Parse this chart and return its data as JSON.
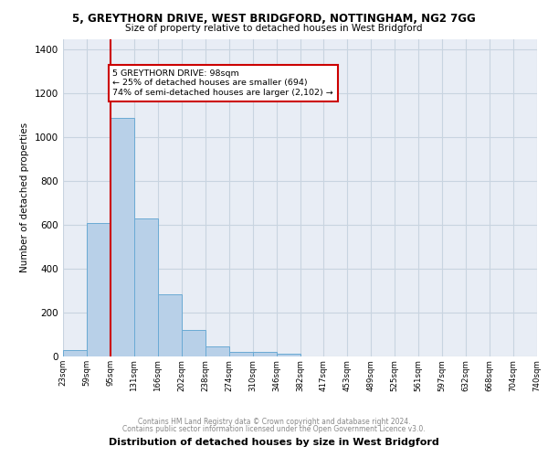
{
  "title": "5, GREYTHORN DRIVE, WEST BRIDGFORD, NOTTINGHAM, NG2 7GG",
  "subtitle": "Size of property relative to detached houses in West Bridgford",
  "xlabel": "Distribution of detached houses by size in West Bridgford",
  "ylabel": "Number of detached properties",
  "bin_labels": [
    "23sqm",
    "59sqm",
    "95sqm",
    "131sqm",
    "166sqm",
    "202sqm",
    "238sqm",
    "274sqm",
    "310sqm",
    "346sqm",
    "382sqm",
    "417sqm",
    "453sqm",
    "489sqm",
    "525sqm",
    "561sqm",
    "597sqm",
    "632sqm",
    "668sqm",
    "704sqm",
    "740sqm"
  ],
  "bar_values": [
    30,
    610,
    1090,
    630,
    285,
    120,
    45,
    20,
    20,
    12,
    0,
    0,
    0,
    0,
    0,
    0,
    0,
    0,
    0,
    0
  ],
  "bar_color": "#b8d0e8",
  "bar_edge_color": "#6aaad4",
  "grid_color": "#c8d4e0",
  "bg_color": "#e8edf5",
  "property_line_color": "#cc0000",
  "annotation_text": "5 GREYTHORN DRIVE: 98sqm\n← 25% of detached houses are smaller (694)\n74% of semi-detached houses are larger (2,102) →",
  "annotation_box_color": "#ffffff",
  "annotation_border_color": "#cc0000",
  "footer_line1": "Contains HM Land Registry data © Crown copyright and database right 2024.",
  "footer_line2": "Contains public sector information licensed under the Open Government Licence v3.0.",
  "ylim": [
    0,
    1450
  ],
  "yticks": [
    0,
    200,
    400,
    600,
    800,
    1000,
    1200,
    1400
  ]
}
